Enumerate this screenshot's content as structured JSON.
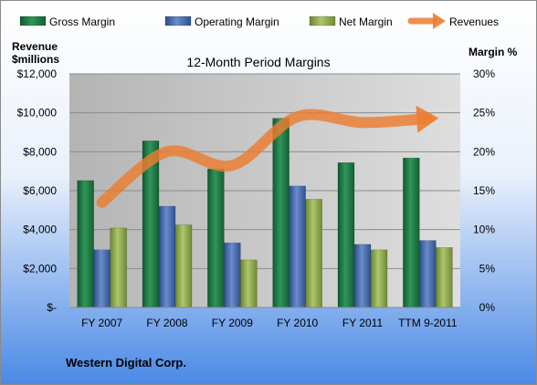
{
  "chart_data": {
    "type": "bar",
    "title": "12-Month Period Margins",
    "company": "Western Digital Corp.",
    "categories": [
      "FY 2007",
      "FY 2008",
      "FY 2009",
      "FY 2010",
      "FY 2011",
      "TTM 9-2011"
    ],
    "left_axis": {
      "label_line1": "Revenue",
      "label_line2": "$millions",
      "range": [
        0,
        12000
      ],
      "ticks": [
        {
          "value": 0,
          "label": "$-"
        },
        {
          "value": 2000,
          "label": "$2,000"
        },
        {
          "value": 4000,
          "label": "$4,000"
        },
        {
          "value": 6000,
          "label": "$6,000"
        },
        {
          "value": 8000,
          "label": "$8,000"
        },
        {
          "value": 10000,
          "label": "$10,000"
        },
        {
          "value": 12000,
          "label": "$12,000"
        }
      ]
    },
    "right_axis": {
      "label": "Margin %",
      "range": [
        0,
        30
      ],
      "ticks": [
        {
          "value": 0,
          "label": "0%"
        },
        {
          "value": 5,
          "label": "5%"
        },
        {
          "value": 10,
          "label": "10%"
        },
        {
          "value": 15,
          "label": "15%"
        },
        {
          "value": 20,
          "label": "20%"
        },
        {
          "value": 25,
          "label": "25%"
        },
        {
          "value": 30,
          "label": "30%"
        }
      ]
    },
    "grid": true,
    "legend_position": "top",
    "series": [
      {
        "name": "Gross Margin",
        "axis": "right",
        "kind": "bar",
        "color": "#1f7a45",
        "values": [
          16.3,
          21.4,
          17.8,
          24.3,
          18.6,
          19.2
        ]
      },
      {
        "name": "Operating Margin",
        "axis": "right",
        "kind": "bar",
        "color": "#4a6fb0",
        "values": [
          7.4,
          13.0,
          8.3,
          15.6,
          8.1,
          8.6
        ]
      },
      {
        "name": "Net Margin",
        "axis": "right",
        "kind": "bar",
        "color": "#8faa4c",
        "values": [
          10.2,
          10.6,
          6.1,
          13.9,
          7.4,
          7.7
        ]
      },
      {
        "name": "Revenues",
        "axis": "left",
        "kind": "line",
        "color": "#ed7d31",
        "values": [
          5400,
          8000,
          7300,
          9800,
          9500,
          9700
        ]
      }
    ]
  }
}
